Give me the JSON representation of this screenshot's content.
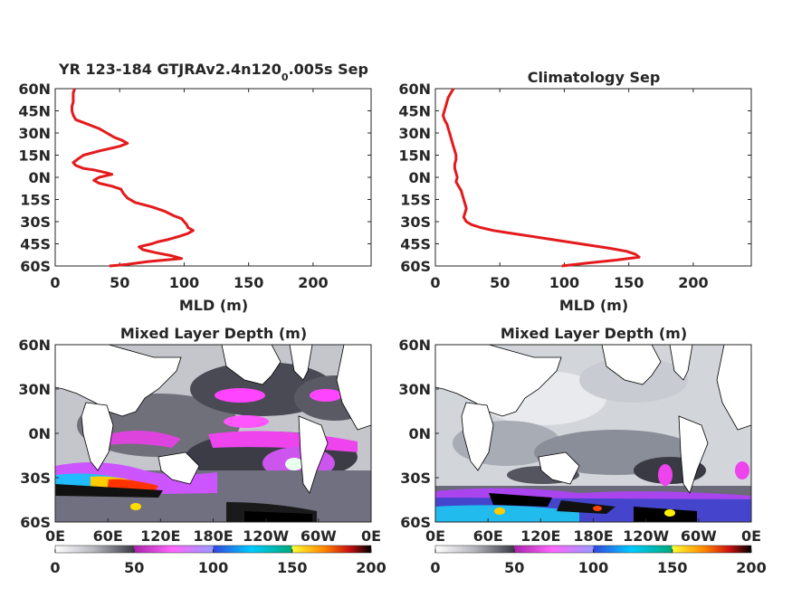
{
  "chart_data": [
    {
      "type": "line",
      "panel": "profile-model",
      "title": "YR 123-184 GTJRAv2.4n120",
      "title_sub": "0",
      "title_suffix": ".005s Sep",
      "xlabel": "MLD (m)",
      "ylabel": "",
      "xlim": [
        0,
        245
      ],
      "xticks": [
        0,
        50,
        100,
        150,
        200
      ],
      "ylim": [
        -60,
        60
      ],
      "yticks": [
        60,
        45,
        30,
        15,
        0,
        -15,
        -30,
        -45,
        -60
      ],
      "ytick_labels": [
        "60N",
        "45N",
        "30N",
        "15N",
        "0N",
        "15S",
        "30S",
        "45S",
        "60S"
      ],
      "series": [
        {
          "color": "#e41a1c",
          "lat": [
            60,
            57,
            54,
            51,
            48,
            45,
            42,
            39,
            36,
            33,
            30,
            27,
            25,
            23,
            21,
            18,
            15,
            12,
            10,
            8,
            6,
            5,
            3,
            2,
            0,
            -2,
            -4,
            -6,
            -8,
            -11,
            -14,
            -17,
            -20,
            -23,
            -26,
            -28,
            -30,
            -32,
            -34,
            -36,
            -38,
            -40,
            -42,
            -43.5,
            -45,
            -47,
            -49,
            -51,
            -53,
            -55,
            -57,
            -59,
            -60
          ],
          "mld": [
            15,
            14,
            14,
            14,
            13,
            13,
            14,
            16,
            25,
            34,
            40,
            46,
            52,
            56,
            50,
            35,
            22,
            17,
            14,
            16,
            22,
            30,
            40,
            44,
            34,
            30,
            34,
            44,
            51,
            53,
            56,
            62,
            75,
            85,
            92,
            98,
            100,
            102,
            103,
            107,
            103,
            96,
            88,
            80,
            75,
            65,
            68,
            78,
            90,
            98,
            72,
            55,
            42
          ]
        }
      ]
    },
    {
      "type": "line",
      "panel": "profile-climatology",
      "title": "Climatology Sep",
      "xlabel": "MLD (m)",
      "ylabel": "",
      "xlim": [
        0,
        245
      ],
      "xticks": [
        0,
        50,
        100,
        150,
        200
      ],
      "ylim": [
        -60,
        60
      ],
      "yticks": [
        60,
        45,
        30,
        15,
        0,
        -15,
        -30,
        -45,
        -60
      ],
      "ytick_labels": [
        "60N",
        "45N",
        "30N",
        "15N",
        "0N",
        "15S",
        "30S",
        "45S",
        "60S"
      ],
      "series": [
        {
          "color": "#e41a1c",
          "lat": [
            60,
            57,
            54,
            51,
            48,
            45,
            42,
            39,
            36,
            33,
            30,
            27,
            24,
            21,
            18,
            15,
            12,
            9,
            6,
            3,
            0,
            -3,
            -6,
            -9,
            -12,
            -15,
            -18,
            -21,
            -24,
            -27,
            -30,
            -32,
            -34,
            -36,
            -38,
            -40,
            -42,
            -44,
            -46,
            -48,
            -50,
            -52,
            -54,
            -56,
            -58,
            -60
          ],
          "mld": [
            14,
            12,
            10,
            9,
            8,
            7,
            6,
            7,
            9,
            10,
            11,
            12,
            13,
            14,
            15,
            16,
            16,
            15,
            15,
            16,
            17,
            16,
            18,
            20,
            21,
            22,
            23,
            24,
            23,
            22,
            24,
            28,
            35,
            45,
            60,
            75,
            90,
            105,
            120,
            135,
            148,
            155,
            158,
            140,
            118,
            98
          ]
        }
      ]
    },
    {
      "type": "heatmap",
      "panel": "map-model",
      "title": "Mixed Layer Depth (m)",
      "xtick_labels": [
        "0E",
        "60E",
        "120E",
        "180E",
        "120W",
        "60W",
        "0E"
      ],
      "ytick_labels": [
        "60N",
        "30N",
        "0N",
        "30S",
        "60S"
      ],
      "colorbar": {
        "range": [
          0,
          200
        ],
        "tick_labels": [
          "0",
          "50",
          "100",
          "150",
          "200"
        ],
        "stops": [
          "#ffffff",
          "#a0a0a8",
          "#404048",
          "#cc33cc",
          "#ff55ff",
          "#9999ff",
          "#3355ee",
          "#00ddff",
          "#00aa77",
          "#ffff33",
          "#ff8800",
          "#dd1111",
          "#000000"
        ]
      }
    },
    {
      "type": "heatmap",
      "panel": "map-climatology",
      "title": "Mixed Layer Depth (m)",
      "xtick_labels": [
        "0E",
        "60E",
        "120E",
        "180E",
        "120W",
        "60W",
        "0E"
      ],
      "ytick_labels": [
        "60N",
        "30N",
        "0N",
        "30S",
        "60S"
      ],
      "colorbar": {
        "range": [
          0,
          200
        ],
        "tick_labels": [
          "0",
          "50",
          "100",
          "150",
          "200"
        ],
        "stops": [
          "#ffffff",
          "#a0a0a8",
          "#404048",
          "#cc33cc",
          "#ff55ff",
          "#9999ff",
          "#3355ee",
          "#00ddff",
          "#00aa77",
          "#ffff33",
          "#ff8800",
          "#dd1111",
          "#000000"
        ]
      }
    }
  ]
}
